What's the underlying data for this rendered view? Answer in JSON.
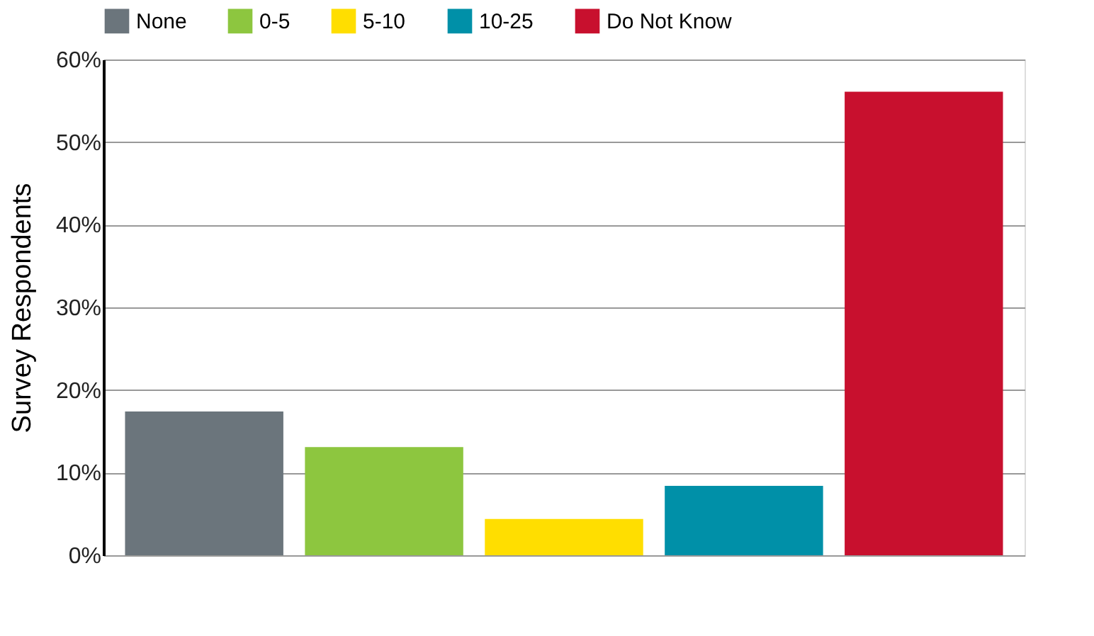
{
  "chart_data": {
    "type": "bar",
    "ylabel": "Survey Respondents",
    "categories": [
      null
    ],
    "series": [
      {
        "name": "None",
        "color": "#6b757c",
        "values": [
          17.4
        ]
      },
      {
        "name": "0-5",
        "color": "#8dc63f",
        "values": [
          13.1
        ]
      },
      {
        "name": "5-10",
        "color": "#ffde00",
        "values": [
          4.4
        ]
      },
      {
        "name": "10-25",
        "color": "#0090a8",
        "values": [
          8.4
        ]
      },
      {
        "name": "Do Not Know",
        "color": "#c8102e",
        "values": [
          56.1
        ]
      }
    ],
    "ylim": [
      0,
      60
    ],
    "yticks": [
      {
        "value": 0,
        "label": "0%"
      },
      {
        "value": 10,
        "label": "10%"
      },
      {
        "value": 20,
        "label": "20%"
      },
      {
        "value": 30,
        "label": "30%"
      },
      {
        "value": 40,
        "label": "40%"
      },
      {
        "value": 50,
        "label": "50%"
      },
      {
        "value": 60,
        "label": "60%"
      }
    ],
    "grid": "y",
    "legend": "top"
  }
}
